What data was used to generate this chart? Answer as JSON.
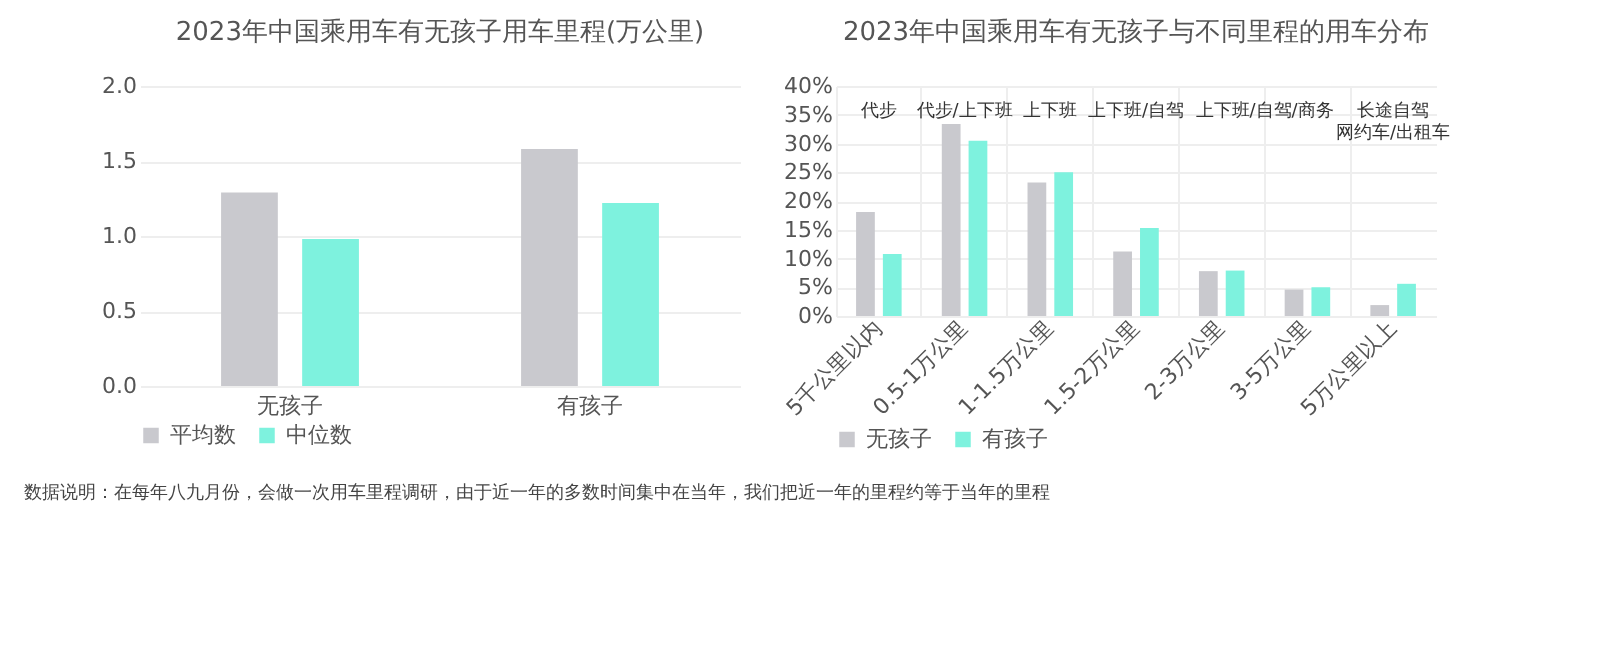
{
  "chart_data": [
    {
      "type": "bar",
      "title": "2023年中国乘用车有无孩子用车里程(万公里)",
      "categories": [
        "无孩子",
        "有孩子"
      ],
      "series": [
        {
          "name": "平均数",
          "color": "#c9c9ce",
          "values": [
            1.29,
            1.58
          ]
        },
        {
          "name": "中位数",
          "color": "#7ef2de",
          "values": [
            0.98,
            1.22
          ]
        }
      ],
      "ylim": [
        0,
        2
      ],
      "yticks": [
        {
          "value": 0,
          "label": "0.0"
        },
        {
          "value": 0.5,
          "label": "0.5"
        },
        {
          "value": 1,
          "label": "1.0"
        },
        {
          "value": 1.5,
          "label": "1.5"
        },
        {
          "value": 2,
          "label": "2.0"
        }
      ],
      "grid": "y",
      "legend": "bottom",
      "annotations": [
        "数据说明：在每年八九月份，会做一次用车里程调研，由于近一年的多数时间集中在当年，我们把近一年的里程约等于当年的里程"
      ]
    },
    {
      "type": "bar",
      "title": "2023年中国乘用车有无孩子与不同里程的用车分布",
      "categories": [
        "5千公里以内",
        "0.5-1万公里",
        "1-1.5万公里",
        "1.5-2万公里",
        "2-3万公里",
        "3-5万公里",
        "5万公里以上"
      ],
      "series": [
        {
          "name": "无孩子",
          "color": "#c9c9ce",
          "values": [
            18.1,
            33.4,
            23.2,
            11.2,
            7.8,
            4.6,
            1.9
          ]
        },
        {
          "name": "有孩子",
          "color": "#7ef2de",
          "values": [
            10.8,
            30.5,
            25.0,
            15.3,
            7.9,
            5.0,
            5.6
          ]
        }
      ],
      "ylim": [
        0,
        40
      ],
      "yticks": [
        {
          "value": 0,
          "label": "0%"
        },
        {
          "value": 5,
          "label": "5%"
        },
        {
          "value": 10,
          "label": "10%"
        },
        {
          "value": 15,
          "label": "15%"
        },
        {
          "value": 20,
          "label": "20%"
        },
        {
          "value": 25,
          "label": "25%"
        },
        {
          "value": 30,
          "label": "30%"
        },
        {
          "value": 35,
          "label": "35%"
        },
        {
          "value": 40,
          "label": "40%"
        }
      ],
      "grid": true,
      "legend": "bottom",
      "annotations": [
        "代步",
        "代步/上下班",
        "上下班",
        "上下班/自驾",
        "上下班/自驾/商务",
        "长途自驾",
        "网约车/出租车"
      ]
    }
  ]
}
